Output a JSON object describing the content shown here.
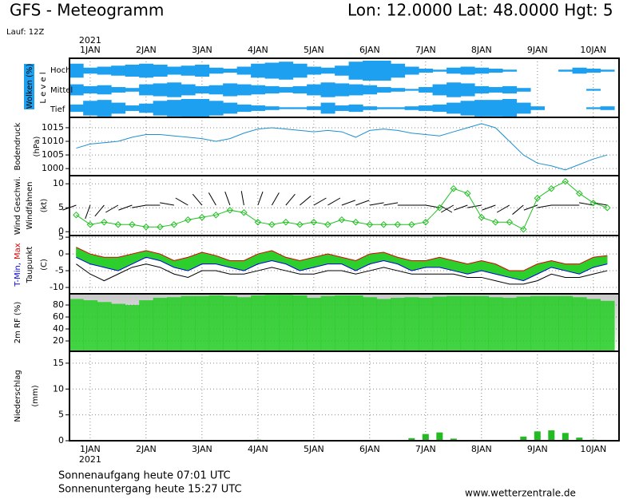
{
  "header": {
    "title": "GFS - Meteogramm",
    "location": "Lon: 12.0000 Lat: 48.0000 Hgt: 5",
    "run": "Lauf: 12Z"
  },
  "time": {
    "year": "2021",
    "x": [
      0.75,
      1,
      1.25,
      1.5,
      1.75,
      2,
      2.25,
      2.5,
      2.75,
      3,
      3.25,
      3.5,
      3.75,
      4,
      4.25,
      4.5,
      4.75,
      5,
      5.25,
      5.5,
      5.75,
      6,
      6.25,
      6.5,
      6.75,
      7,
      7.25,
      7.5,
      7.75,
      8,
      8.25,
      8.5,
      8.75,
      9,
      9.25,
      9.5,
      9.75,
      10,
      10.25
    ],
    "xlim": [
      0.63,
      10.46
    ],
    "xticks": [
      {
        "value": 1,
        "label": "1JAN"
      },
      {
        "value": 2,
        "label": "2JAN"
      },
      {
        "value": 3,
        "label": "3JAN"
      },
      {
        "value": 4,
        "label": "4JAN"
      },
      {
        "value": 5,
        "label": "5JAN"
      },
      {
        "value": 6,
        "label": "6JAN"
      },
      {
        "value": 7,
        "label": "7JAN"
      },
      {
        "value": 8,
        "label": "8JAN"
      },
      {
        "value": 9,
        "label": "9JAN"
      },
      {
        "value": 10,
        "label": "10JAN"
      }
    ]
  },
  "chart_data": [
    {
      "type": "heatmap",
      "ylabel": "Wolken (%)",
      "level_label": "L e v e l",
      "series": [
        {
          "name": "Hoch",
          "color": "#1ea0f0",
          "values": [
            70,
            30,
            40,
            50,
            60,
            70,
            60,
            40,
            50,
            60,
            30,
            20,
            40,
            70,
            80,
            90,
            70,
            40,
            30,
            50,
            90,
            100,
            100,
            70,
            40,
            20,
            10,
            30,
            40,
            30,
            20,
            10,
            0,
            0,
            0,
            10,
            30,
            20,
            10
          ]
        },
        {
          "name": "Mittel",
          "color": "#1ea0f0",
          "values": [
            60,
            40,
            50,
            30,
            20,
            60,
            70,
            80,
            60,
            40,
            50,
            70,
            60,
            50,
            40,
            30,
            40,
            60,
            80,
            70,
            60,
            50,
            30,
            20,
            10,
            30,
            60,
            80,
            70,
            40,
            30,
            40,
            20,
            0,
            0,
            0,
            0,
            10,
            0
          ]
        },
        {
          "name": "Tief",
          "color": "#1ea0f0",
          "values": [
            40,
            80,
            90,
            60,
            30,
            50,
            80,
            90,
            100,
            100,
            80,
            60,
            40,
            30,
            20,
            10,
            10,
            20,
            60,
            30,
            40,
            20,
            10,
            10,
            20,
            30,
            40,
            60,
            80,
            90,
            90,
            100,
            60,
            20,
            0,
            0,
            0,
            10,
            20
          ]
        }
      ]
    },
    {
      "type": "line",
      "ylabel": "Bodendruck",
      "unit": "(hPa)",
      "color": "#1e90d0",
      "ylim": [
        997.4,
        1018.8
      ],
      "yticks": [
        1000,
        1005,
        1010,
        1015
      ],
      "grid": true,
      "values": [
        1007.5,
        1009,
        1009.5,
        1010,
        1011.5,
        1012.5,
        1012.5,
        1012,
        1011.5,
        1011,
        1010,
        1011,
        1013,
        1014.5,
        1015,
        1014.5,
        1014,
        1013.5,
        1014,
        1013.5,
        1011.5,
        1014,
        1014.5,
        1014,
        1013,
        1012.5,
        1012,
        1013.5,
        1015,
        1016.5,
        1015,
        1010,
        1005,
        1002,
        1001,
        999.5,
        1001.5,
        1003.5,
        1005
      ]
    },
    {
      "type": "line",
      "unit": "(kt)",
      "ylim": [
        -0.8,
        11.7
      ],
      "yticks": [
        0,
        5,
        10
      ],
      "grid": true,
      "series": [
        {
          "name": "Wind Geschwi.",
          "color": "#20c020",
          "values": [
            3.5,
            1.5,
            2,
            1.5,
            1.5,
            1,
            1,
            1.5,
            2.5,
            3,
            3.5,
            4.5,
            4,
            2,
            1.5,
            2,
            1.5,
            2,
            1.5,
            2.5,
            2,
            1.5,
            1.5,
            1.5,
            1.5,
            2,
            5,
            9,
            8,
            3,
            2,
            2,
            0.5,
            7,
            9,
            10.5,
            8,
            6,
            5
          ]
        }
      ],
      "barbs": {
        "name": "Windfahnen",
        "color": "#000000",
        "values": [
          250,
          200,
          220,
          240,
          250,
          260,
          270,
          280,
          300,
          320,
          330,
          340,
          350,
          20,
          30,
          40,
          50,
          60,
          60,
          70,
          70,
          80,
          80,
          90,
          90,
          100,
          120,
          240,
          250,
          260,
          250,
          240,
          230,
          250,
          260,
          270,
          270,
          280,
          280
        ]
      }
    },
    {
      "type": "line",
      "unit": "(C)",
      "ylim": [
        -11.9,
        5.5
      ],
      "yticks": [
        -10,
        -5,
        0,
        5
      ],
      "grid": true,
      "fill_color": "#2ccf2c",
      "series": [
        {
          "name": "T-Min,",
          "color": "#0000e0",
          "values": [
            -1,
            -3,
            -4,
            -5,
            -3,
            -1,
            -2,
            -4,
            -5,
            -3,
            -3,
            -4,
            -5,
            -3,
            -2,
            -3,
            -5,
            -4,
            -3,
            -3,
            -5,
            -3,
            -2,
            -3,
            -5,
            -4,
            -4,
            -5,
            -6,
            -5,
            -6,
            -7,
            -8,
            -6,
            -4,
            -5,
            -6,
            -4,
            -3
          ]
        },
        {
          "name": "Max",
          "color": "#e00000",
          "values": [
            2,
            0,
            -1,
            -1,
            0,
            1,
            0,
            -2,
            -1,
            0.5,
            -0.5,
            -2,
            -2,
            0,
            1,
            -1,
            -2,
            -1,
            0,
            -1,
            -2,
            0,
            0.5,
            -1,
            -2,
            -2,
            -1,
            -2,
            -3,
            -2,
            -3,
            -5,
            -5,
            -3,
            -2,
            -3,
            -3,
            -1,
            -0.5
          ]
        },
        {
          "name": "Taupunkt",
          "color": "#000000",
          "values": [
            -3,
            -6,
            -8,
            -6,
            -4,
            -3,
            -4,
            -6,
            -7,
            -5,
            -5,
            -6,
            -6,
            -5,
            -4,
            -5,
            -6,
            -6,
            -5,
            -5,
            -6,
            -5,
            -4,
            -5,
            -6,
            -6,
            -6,
            -6,
            -7,
            -7,
            -8,
            -9,
            -9,
            -8,
            -6,
            -7,
            -7,
            -6,
            -5
          ]
        }
      ]
    },
    {
      "type": "area",
      "ylabel": "2m RF (%)",
      "color": "#22cc22",
      "ylim": [
        2.7,
        98.7
      ],
      "yticks": [
        20,
        40,
        60,
        80
      ],
      "grid": true,
      "values": [
        90,
        88,
        85,
        82,
        80,
        88,
        92,
        93,
        95,
        95,
        96,
        95,
        93,
        96,
        97,
        97,
        96,
        92,
        95,
        96,
        96,
        93,
        90,
        92,
        93,
        92,
        94,
        95,
        95,
        95,
        93,
        92,
        94,
        95,
        95,
        95,
        93,
        90,
        87
      ]
    },
    {
      "type": "bar",
      "ylabel": "Niederschlag",
      "unit": "(mm)",
      "color": "#22bb22",
      "ylim": [
        0,
        17.3
      ],
      "yticks": [
        0,
        5,
        10,
        15
      ],
      "grid": true,
      "values": [
        0,
        0,
        0,
        0,
        0,
        0,
        0,
        0,
        0,
        0.1,
        0,
        0,
        0,
        0.2,
        0,
        0,
        0,
        0.1,
        0,
        0,
        0,
        0,
        0,
        0,
        0.5,
        1.3,
        1.6,
        0.4,
        0,
        0,
        0,
        0,
        0.8,
        1.8,
        2.0,
        1.5,
        0.6,
        0.2,
        0
      ]
    }
  ],
  "footer": {
    "sunrise": "Sonnenaufgang heute 07:01 UTC",
    "sunset": "Sonnenuntergang heute 15:27 UTC",
    "site": "www.wetterzentrale.de"
  }
}
